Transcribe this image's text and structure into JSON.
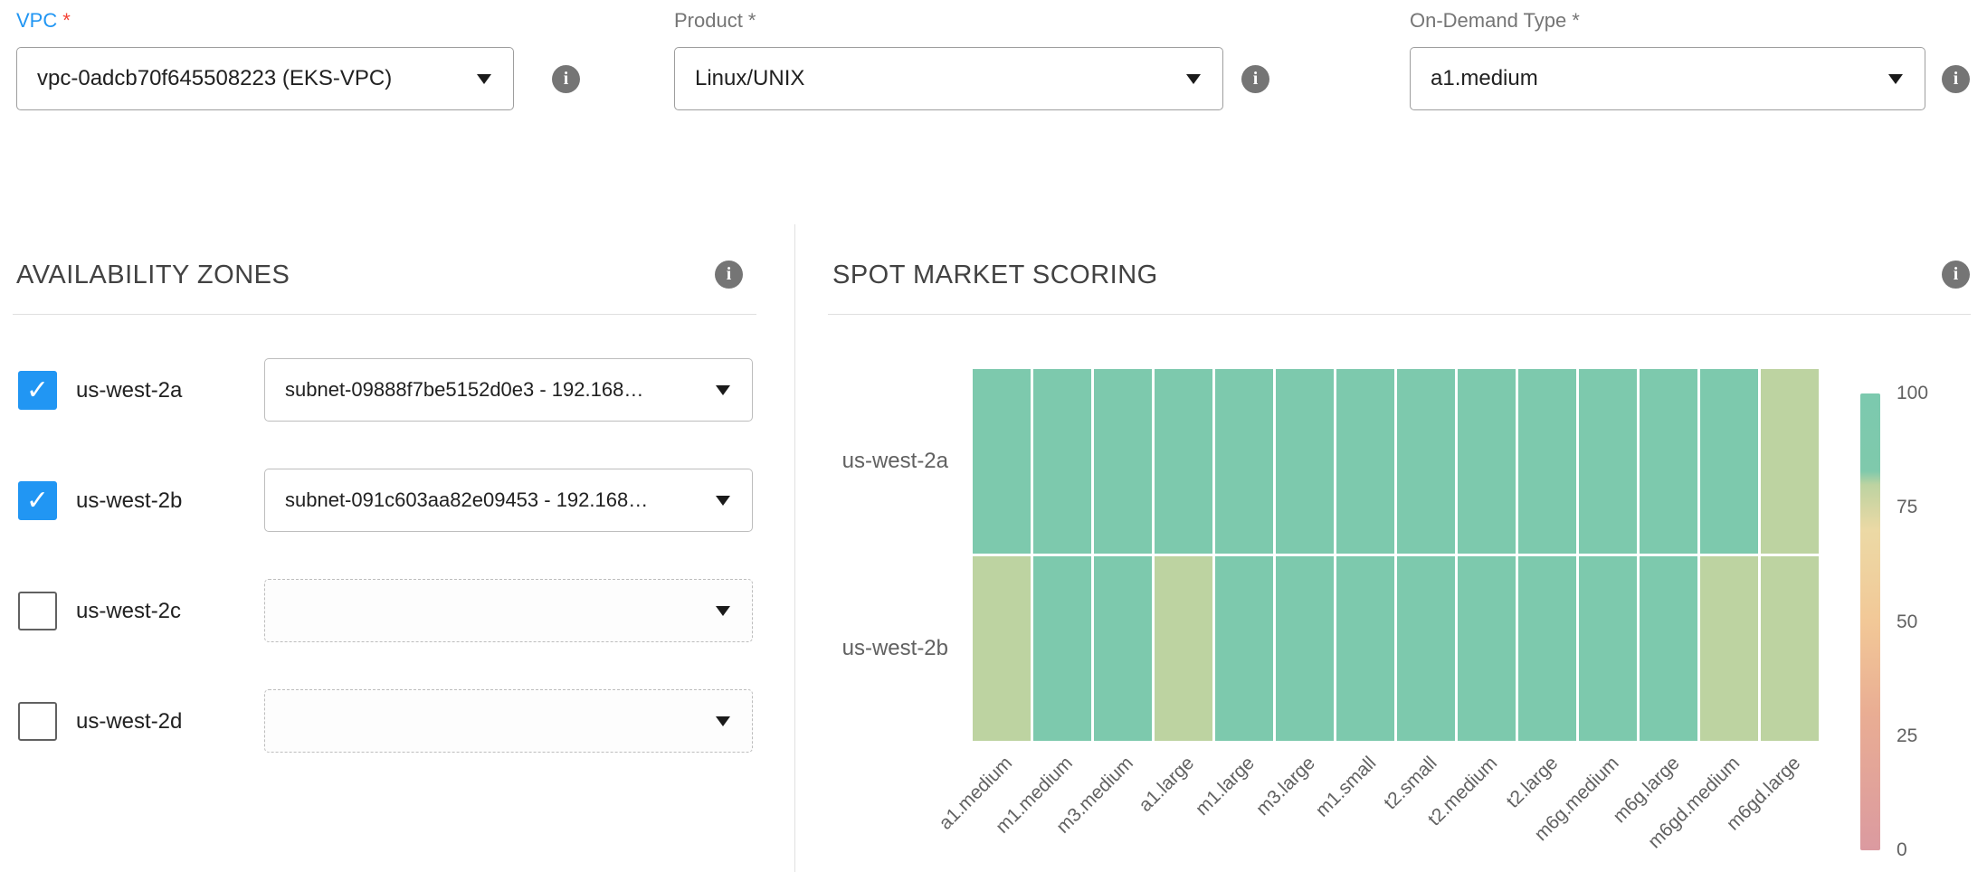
{
  "icons": {
    "info": "i",
    "check": "✓"
  },
  "top_controls": {
    "vpc": {
      "label": "VPC",
      "required": "*",
      "value": "vpc-0adcb70f645508223 (EKS-VPC)"
    },
    "product": {
      "label": "Product",
      "required": "*",
      "value": "Linux/UNIX"
    },
    "on_demand_type": {
      "label": "On-Demand Type",
      "required": "*",
      "value": "a1.medium"
    }
  },
  "availability_zones": {
    "title": "AVAILABILITY ZONES",
    "items": [
      {
        "zone": "us-west-2a",
        "checked": true,
        "subnet": "subnet-09888f7be5152d0e3 - 192.168…"
      },
      {
        "zone": "us-west-2b",
        "checked": true,
        "subnet": "subnet-091c603aa82e09453 - 192.168…"
      },
      {
        "zone": "us-west-2c",
        "checked": false,
        "subnet": ""
      },
      {
        "zone": "us-west-2d",
        "checked": false,
        "subnet": ""
      }
    ]
  },
  "spot_market": {
    "title": "SPOT MARKET SCORING"
  },
  "chart_data": {
    "type": "heatmap",
    "title": "SPOT MARKET SCORING",
    "rows": [
      "us-west-2a",
      "us-west-2b"
    ],
    "columns": [
      "a1.medium",
      "m1.medium",
      "m3.medium",
      "a1.large",
      "m1.large",
      "m3.large",
      "m1.small",
      "t2.small",
      "t2.medium",
      "t2.large",
      "m6g.medium",
      "m6g.large",
      "m6gd.medium",
      "m6gd.large"
    ],
    "values": [
      [
        95,
        95,
        95,
        95,
        95,
        95,
        95,
        95,
        95,
        95,
        95,
        95,
        95,
        80
      ],
      [
        80,
        95,
        95,
        80,
        95,
        95,
        95,
        95,
        95,
        95,
        95,
        95,
        80,
        80
      ]
    ],
    "value_range": [
      0,
      100
    ],
    "colorbar": {
      "position": "right",
      "ticks": [
        100,
        75,
        50,
        25,
        0
      ]
    },
    "colorscale": [
      [
        0,
        "#db9aa0"
      ],
      [
        30,
        "#e9ad93"
      ],
      [
        50,
        "#f2c897"
      ],
      [
        70,
        "#ecd9a5"
      ],
      [
        80,
        "#bdd3a1"
      ],
      [
        83,
        "#7fc9ac"
      ],
      [
        100,
        "#7cc9ae"
      ]
    ]
  }
}
